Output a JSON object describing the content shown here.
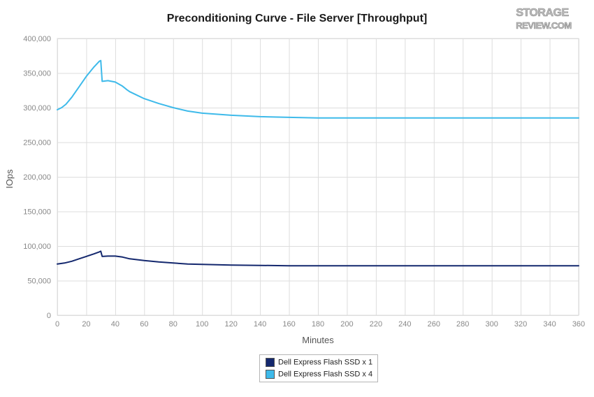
{
  "header": {
    "title": "Preconditioning Curve - File Server [Throughput]",
    "logo_text_top": "STORAGE",
    "logo_text_bottom": "REVIEW.COM"
  },
  "colors": {
    "series1": "#14286e",
    "series2": "#3ebaea",
    "grid": "#dddddd",
    "axis_text": "#888888"
  },
  "chart_data": {
    "type": "line",
    "title": "Preconditioning Curve - File Server [Throughput]",
    "xlabel": "Minutes",
    "ylabel": "IOps",
    "xlim": [
      0,
      360
    ],
    "ylim": [
      0,
      400000
    ],
    "x_ticks": [
      0,
      20,
      40,
      60,
      80,
      100,
      120,
      140,
      160,
      180,
      200,
      220,
      240,
      260,
      280,
      300,
      320,
      340,
      360
    ],
    "y_ticks": [
      0,
      50000,
      100000,
      150000,
      200000,
      250000,
      300000,
      350000,
      400000
    ],
    "y_tick_labels": [
      "0",
      "50,000",
      "100,000",
      "150,000",
      "200,000",
      "250,000",
      "300,000",
      "350,000",
      "400,000"
    ],
    "grid": true,
    "legend_position": "bottom-center",
    "series": [
      {
        "name": "Dell Express Flash SSD x 1",
        "x": [
          0,
          5,
          10,
          15,
          20,
          25,
          29,
          30,
          31,
          35,
          40,
          45,
          50,
          60,
          70,
          80,
          90,
          100,
          120,
          140,
          160,
          180,
          200,
          220,
          240,
          260,
          280,
          300,
          320,
          340,
          360
        ],
        "y": [
          74000,
          75500,
          78000,
          81500,
          85000,
          88500,
          91500,
          92500,
          85000,
          85500,
          85500,
          84000,
          81500,
          79000,
          77000,
          75500,
          74000,
          73500,
          72500,
          72000,
          71500,
          71500,
          71500,
          71500,
          71500,
          71500,
          71500,
          71500,
          71500,
          71500,
          71500
        ]
      },
      {
        "name": "Dell Express Flash SSD x 4",
        "x": [
          0,
          3,
          6,
          10,
          15,
          20,
          25,
          29,
          30,
          31,
          35,
          40,
          45,
          48,
          50,
          55,
          60,
          70,
          80,
          90,
          100,
          120,
          140,
          160,
          180,
          200,
          220,
          240,
          260,
          280,
          300,
          320,
          340,
          360
        ],
        "y": [
          297000,
          300000,
          305000,
          315000,
          330000,
          345000,
          358000,
          367000,
          368000,
          338000,
          339000,
          337000,
          331000,
          326000,
          323000,
          318000,
          313000,
          306000,
          300000,
          295000,
          292000,
          289000,
          287000,
          286000,
          285000,
          285000,
          285000,
          285000,
          285000,
          285000,
          285000,
          285000,
          285000,
          285000
        ]
      }
    ]
  }
}
